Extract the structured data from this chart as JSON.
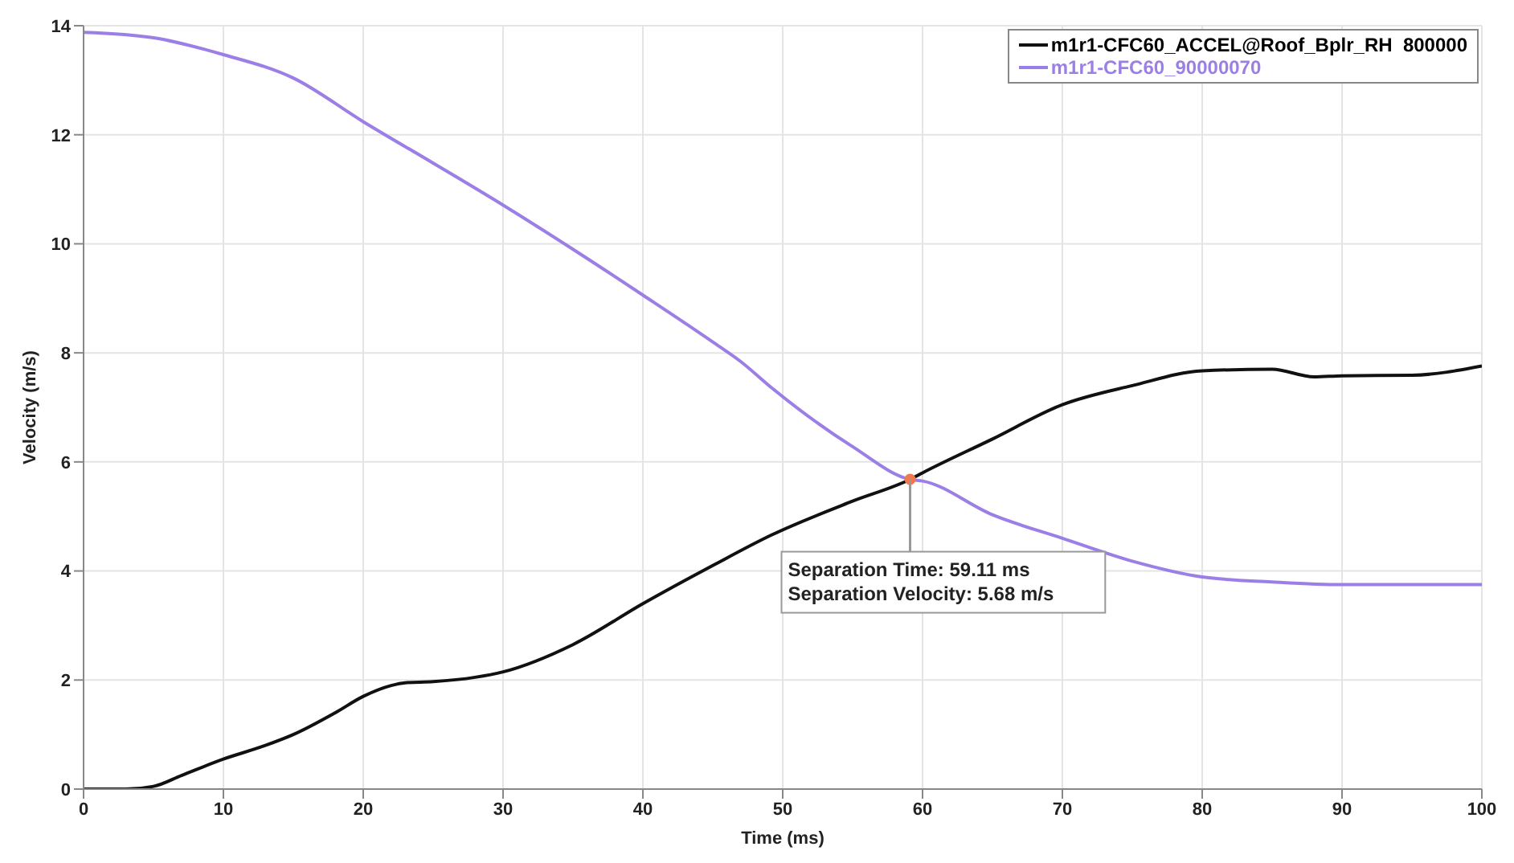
{
  "chart_data": {
    "type": "line",
    "xlabel": "Time (ms)",
    "ylabel": "Velocity (m/s)",
    "xlim": [
      0,
      100
    ],
    "ylim": [
      0,
      14
    ],
    "xticks": [
      0,
      10,
      20,
      30,
      40,
      50,
      60,
      70,
      80,
      90,
      100
    ],
    "yticks": [
      0,
      2,
      4,
      6,
      8,
      10,
      12,
      14
    ],
    "grid": true,
    "legend": "top right",
    "marker": "none",
    "line_style": "solid",
    "series": [
      {
        "name": "m1r1-CFC60_ACCEL@Roof_Bplr_RH  800000",
        "color": "#111111",
        "x": [
          0,
          3,
          5,
          7,
          10,
          13,
          15,
          18,
          20,
          22,
          23,
          25,
          28,
          30,
          35,
          40,
          45,
          49.2,
          55,
          59.11,
          60,
          65,
          70,
          75,
          80,
          85,
          88,
          90,
          95,
          100
        ],
        "values": [
          0,
          0,
          0.05,
          0.25,
          0.55,
          0.8,
          1.0,
          1.4,
          1.7,
          1.9,
          1.95,
          1.97,
          2.05,
          2.15,
          2.65,
          3.4,
          4.1,
          4.66,
          5.28,
          5.68,
          5.8,
          6.42,
          7.05,
          7.4,
          7.67,
          7.7,
          7.56,
          7.58,
          7.59,
          7.76
        ]
      },
      {
        "name": "m1r1-CFC60_90000070",
        "color": "#9b7fe6",
        "x": [
          0,
          5,
          10,
          15,
          20,
          25,
          30,
          35,
          40,
          45,
          47,
          49.2,
          55,
          59.11,
          60,
          65,
          70,
          75,
          80,
          85,
          90,
          95,
          100
        ],
        "values": [
          13.88,
          13.78,
          13.47,
          13.04,
          12.24,
          11.48,
          10.71,
          9.9,
          9.06,
          8.2,
          7.84,
          7.36,
          6.28,
          5.68,
          5.65,
          5.03,
          4.6,
          4.18,
          3.89,
          3.8,
          3.75,
          3.75,
          3.75
        ]
      }
    ],
    "annotations": [
      {
        "text": "Separation Time: 59.11 ms\nSeparation Velocity: 5.68 m/s",
        "x": 59.11,
        "y": 5.68
      }
    ]
  }
}
